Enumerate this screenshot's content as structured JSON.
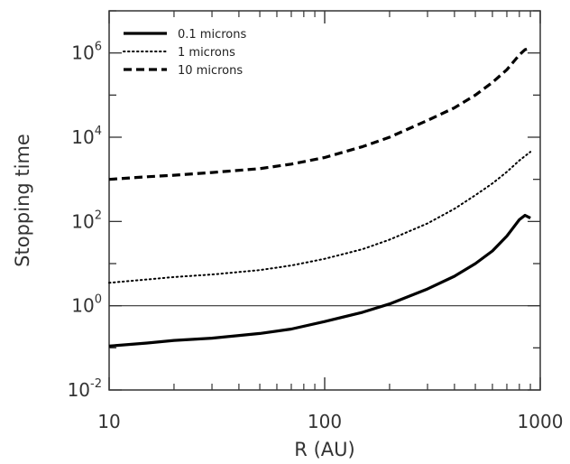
{
  "chart_data": {
    "type": "line",
    "xlabel": "R (AU)",
    "ylabel": "Stopping time",
    "xscale": "log",
    "yscale": "log",
    "xlim": [
      10,
      1000
    ],
    "ylim": [
      0.01,
      10000000
    ],
    "x_ticks": [
      {
        "value": 10,
        "label": "10"
      },
      {
        "value": 100,
        "label": "100"
      },
      {
        "value": 1000,
        "label": "1000"
      }
    ],
    "y_ticks": [
      {
        "value": 0.01,
        "base": "10",
        "exp": "-2"
      },
      {
        "value": 1,
        "base": "10",
        "exp": "0"
      },
      {
        "value": 100,
        "base": "10",
        "exp": "2"
      },
      {
        "value": 10000,
        "base": "10",
        "exp": "4"
      },
      {
        "value": 1000000,
        "base": "10",
        "exp": "6"
      }
    ],
    "reference_line": {
      "y": 1
    },
    "legend_position": "top-left",
    "grid": false,
    "series": [
      {
        "name": "0.1 microns",
        "style": "solid",
        "x": [
          10,
          15,
          20,
          30,
          50,
          70,
          100,
          150,
          200,
          300,
          400,
          500,
          600,
          700,
          800,
          850,
          900
        ],
        "y": [
          0.11,
          0.13,
          0.15,
          0.17,
          0.22,
          0.28,
          0.42,
          0.7,
          1.1,
          2.5,
          5,
          10,
          20,
          45,
          110,
          140,
          120
        ]
      },
      {
        "name": "1 microns",
        "style": "dotted",
        "x": [
          10,
          15,
          20,
          30,
          50,
          70,
          100,
          150,
          200,
          300,
          400,
          500,
          600,
          700,
          800,
          900
        ],
        "y": [
          3.5,
          4.2,
          4.8,
          5.5,
          7,
          9,
          13,
          22,
          37,
          90,
          200,
          420,
          800,
          1500,
          2800,
          4500
        ]
      },
      {
        "name": "10 microns",
        "style": "dashed",
        "x": [
          10,
          15,
          20,
          30,
          50,
          70,
          100,
          150,
          200,
          300,
          400,
          500,
          600,
          700,
          800,
          850,
          900
        ],
        "y": [
          1000,
          1150,
          1250,
          1450,
          1800,
          2300,
          3300,
          6000,
          10000,
          25000,
          50000,
          100000,
          200000,
          400000,
          900000,
          1200000,
          1300000
        ]
      }
    ]
  },
  "colors": {
    "axis": "#333333",
    "line": "#000000",
    "background": "#ffffff"
  }
}
